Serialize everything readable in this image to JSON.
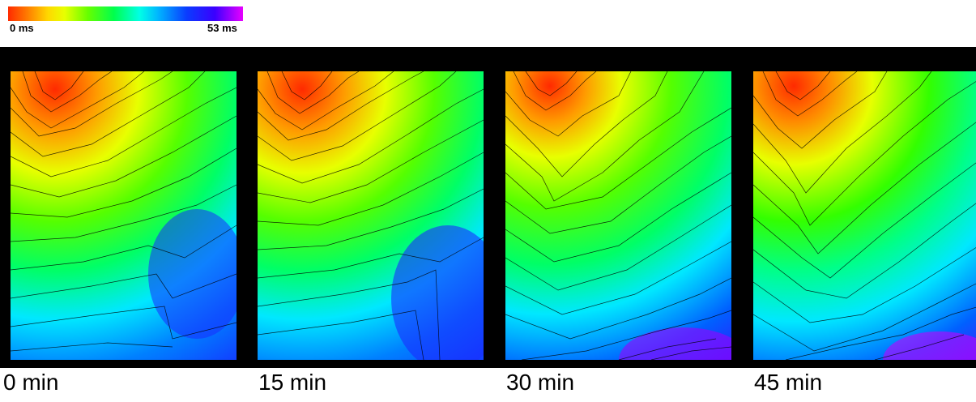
{
  "colorbar": {
    "min_label": "0 ms",
    "max_label": "53 ms",
    "stops": [
      "#ff2a00",
      "#ff7a00",
      "#ffd800",
      "#e8ff00",
      "#66ff00",
      "#00ff4c",
      "#00ffe6",
      "#00b4ff",
      "#0a3cff",
      "#3a00ff",
      "#e800ff"
    ]
  },
  "panels": [
    {
      "label": "0 min"
    },
    {
      "label": "15 min"
    },
    {
      "label": "30 min"
    },
    {
      "label": "45 min"
    }
  ]
}
